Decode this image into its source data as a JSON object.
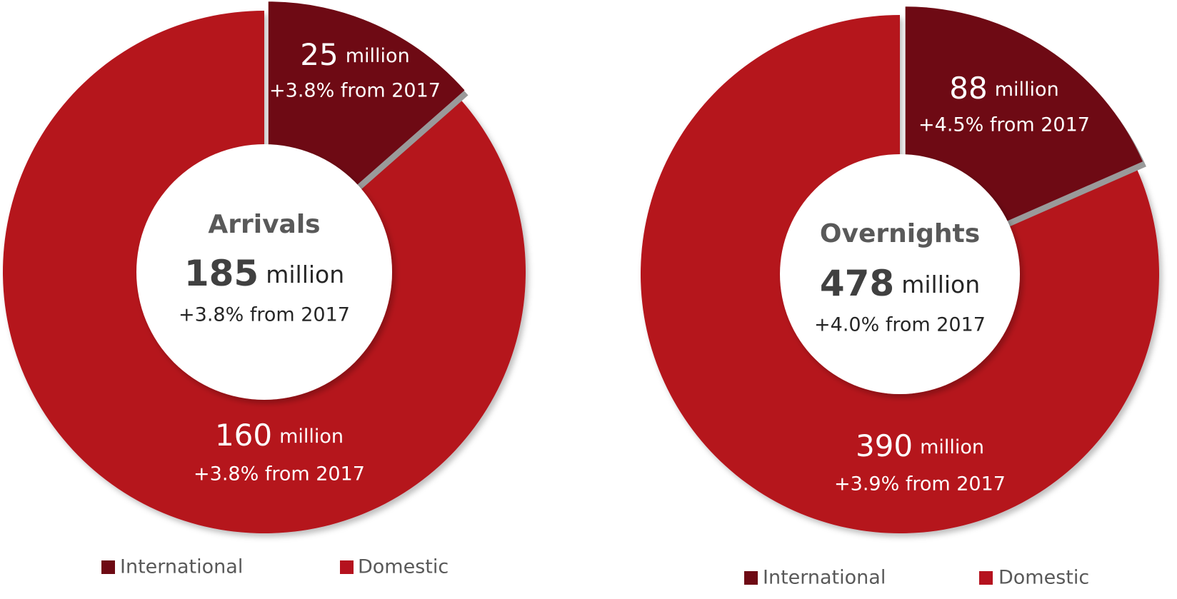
{
  "chart_data": [
    {
      "type": "donut",
      "title": "Arrivals",
      "total": 185,
      "unit": "million",
      "total_change": "+3.8% from 2017",
      "categories": [
        "International",
        "Domestic"
      ],
      "values": [
        25,
        160
      ],
      "changes": [
        "+3.8% from 2017",
        "+3.8% from 2017"
      ],
      "colors": [
        "#6e0a14",
        "#b5121e"
      ]
    },
    {
      "type": "donut",
      "title": "Overnights",
      "total": 478,
      "unit": "million",
      "total_change": "+4.0% from 2017",
      "categories": [
        "International",
        "Domestic"
      ],
      "values": [
        88,
        390
      ],
      "changes": [
        "+4.5% from 2017",
        "+3.9% from 2017"
      ],
      "colors": [
        "#6e0a14",
        "#b5121e"
      ]
    }
  ]
}
